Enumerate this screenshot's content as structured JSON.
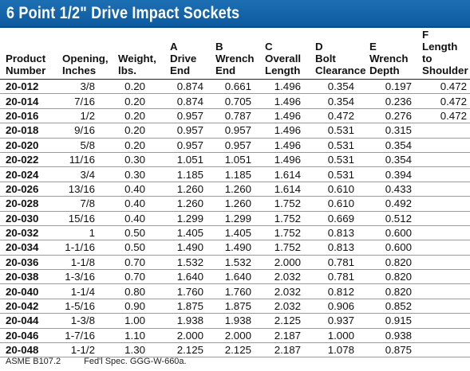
{
  "title": "6 Point 1/2\" Drive Impact Sockets",
  "columns": [
    {
      "key": "product",
      "label": "Product\nNumber"
    },
    {
      "key": "opening",
      "label": "Opening,\nInches"
    },
    {
      "key": "weight",
      "label": "Weight,\nlbs."
    },
    {
      "key": "a",
      "label": "A\nDrive\nEnd"
    },
    {
      "key": "b",
      "label": "B\nWrench\nEnd"
    },
    {
      "key": "c",
      "label": "C\nOverall\nLength"
    },
    {
      "key": "d",
      "label": "D\nBolt\nClearance"
    },
    {
      "key": "e",
      "label": "E\nWrench\nDepth"
    },
    {
      "key": "f",
      "label": "F\nLength to\nShoulder"
    }
  ],
  "rows": [
    [
      "20-012",
      "3/8",
      "0.20",
      "0.874",
      "0.661",
      "1.496",
      "0.354",
      "0.197",
      "0.472"
    ],
    [
      "20-014",
      "7/16",
      "0.20",
      "0.874",
      "0.705",
      "1.496",
      "0.354",
      "0.236",
      "0.472"
    ],
    [
      "20-016",
      "1/2",
      "0.20",
      "0.957",
      "0.787",
      "1.496",
      "0.472",
      "0.276",
      "0.472"
    ],
    [
      "20-018",
      "9/16",
      "0.20",
      "0.957",
      "0.957",
      "1.496",
      "0.531",
      "0.315",
      ""
    ],
    [
      "20-020",
      "5/8",
      "0.20",
      "0.957",
      "0.957",
      "1.496",
      "0.531",
      "0.354",
      ""
    ],
    [
      "20-022",
      "11/16",
      "0.30",
      "1.051",
      "1.051",
      "1.496",
      "0.531",
      "0.354",
      ""
    ],
    [
      "20-024",
      "3/4",
      "0.30",
      "1.185",
      "1.185",
      "1.614",
      "0.531",
      "0.394",
      ""
    ],
    [
      "20-026",
      "13/16",
      "0.40",
      "1.260",
      "1.260",
      "1.614",
      "0.610",
      "0.433",
      ""
    ],
    [
      "20-028",
      "7/8",
      "0.40",
      "1.260",
      "1.260",
      "1.752",
      "0.610",
      "0.492",
      ""
    ],
    [
      "20-030",
      "15/16",
      "0.40",
      "1.299",
      "1.299",
      "1.752",
      "0.669",
      "0.512",
      ""
    ],
    [
      "20-032",
      "1",
      "0.50",
      "1.405",
      "1.405",
      "1.752",
      "0.813",
      "0.600",
      ""
    ],
    [
      "20-034",
      "1-1/16",
      "0.50",
      "1.490",
      "1.490",
      "1.752",
      "0.813",
      "0.600",
      ""
    ],
    [
      "20-036",
      "1-1/8",
      "0.70",
      "1.532",
      "1.532",
      "2.000",
      "0.781",
      "0.820",
      ""
    ],
    [
      "20-038",
      "1-3/16",
      "0.70",
      "1.640",
      "1.640",
      "2.032",
      "0.781",
      "0.820",
      ""
    ],
    [
      "20-040",
      "1-1/4",
      "0.80",
      "1.760",
      "1.760",
      "2.032",
      "0.812",
      "0.820",
      ""
    ],
    [
      "20-042",
      "1-5/16",
      "0.90",
      "1.875",
      "1.875",
      "2.032",
      "0.906",
      "0.852",
      ""
    ],
    [
      "20-044",
      "1-3/8",
      "1.00",
      "1.938",
      "1.938",
      "2.125",
      "0.937",
      "0.915",
      ""
    ],
    [
      "20-046",
      "1-7/16",
      "1.10",
      "2.000",
      "2.000",
      "2.187",
      "1.000",
      "0.938",
      ""
    ],
    [
      "20-048",
      "1-1/2",
      "1.30",
      "2.125",
      "2.125",
      "2.187",
      "1.078",
      "0.875",
      ""
    ]
  ],
  "footnotes": [
    "ASME B107.2",
    "Fed'l Spec. GGG-W-660a."
  ],
  "colors": {
    "title_bar": "#1466ad",
    "title_text": "#ffffff"
  }
}
